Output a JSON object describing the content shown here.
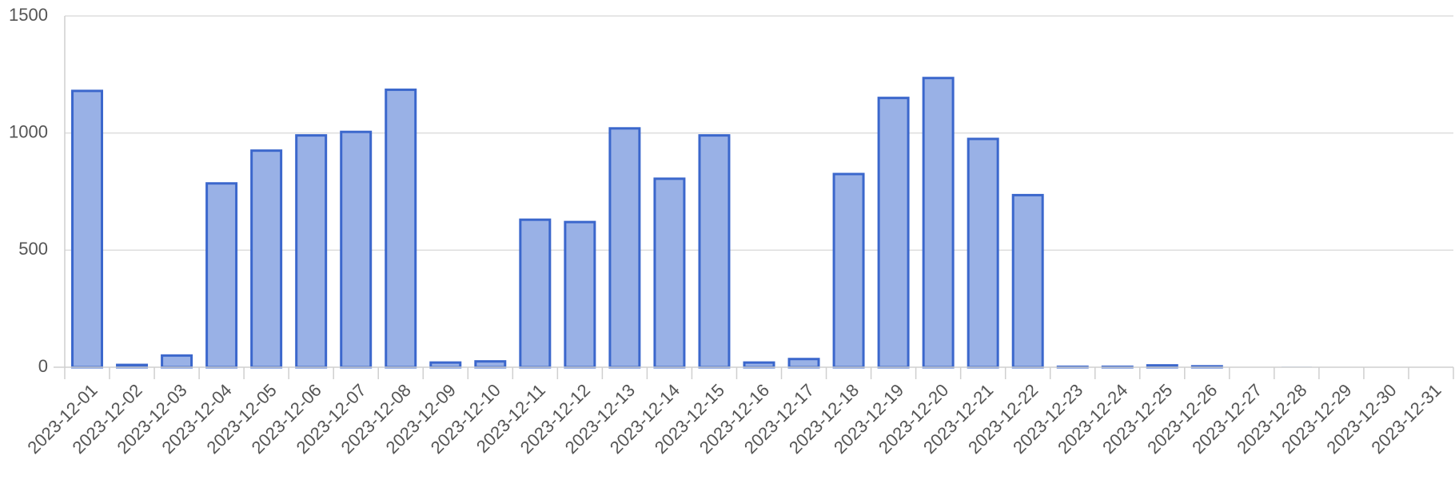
{
  "chart_data": {
    "type": "bar",
    "title": "",
    "xlabel": "",
    "ylabel": "",
    "ylim": [
      0,
      1500
    ],
    "yticks": [
      0,
      500,
      1000,
      1500
    ],
    "grid": true,
    "legend": "none",
    "bar_fill": "#99b1e6",
    "bar_stroke": "#3b67cc",
    "categories": [
      "2023-12-01",
      "2023-12-02",
      "2023-12-03",
      "2023-12-04",
      "2023-12-05",
      "2023-12-06",
      "2023-12-07",
      "2023-12-08",
      "2023-12-09",
      "2023-12-10",
      "2023-12-11",
      "2023-12-12",
      "2023-12-13",
      "2023-12-14",
      "2023-12-15",
      "2023-12-16",
      "2023-12-17",
      "2023-12-18",
      "2023-12-19",
      "2023-12-20",
      "2023-12-21",
      "2023-12-22",
      "2023-12-23",
      "2023-12-24",
      "2023-12-25",
      "2023-12-26",
      "2023-12-27",
      "2023-12-28",
      "2023-12-29",
      "2023-12-30",
      "2023-12-31"
    ],
    "values": [
      1180,
      10,
      50,
      785,
      925,
      990,
      1005,
      1185,
      20,
      25,
      630,
      620,
      1020,
      805,
      990,
      20,
      35,
      825,
      1150,
      1235,
      975,
      735,
      2,
      2,
      8,
      4,
      0,
      1,
      0,
      0,
      0
    ]
  }
}
